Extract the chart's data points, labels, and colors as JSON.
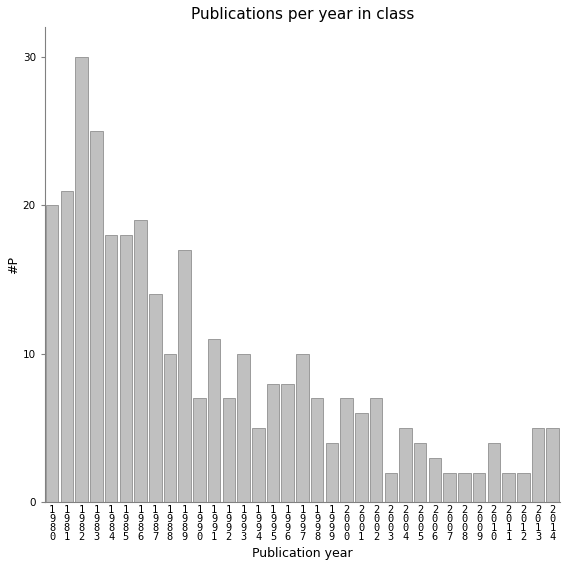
{
  "title": "Publications per year in class",
  "xlabel": "Publication year",
  "ylabel": "#P",
  "categories": [
    "1980",
    "1981",
    "1982",
    "1983",
    "1984",
    "1985",
    "1986",
    "1987",
    "1988",
    "1989",
    "1990",
    "1991",
    "1992",
    "1993",
    "1994",
    "1995",
    "1996",
    "1997",
    "1998",
    "1999",
    "2000",
    "2001",
    "2002",
    "2003",
    "2004",
    "2005",
    "2006",
    "2007",
    "2008",
    "2009",
    "2010",
    "2011",
    "2012",
    "2013",
    "2014"
  ],
  "values": [
    20,
    21,
    30,
    25,
    18,
    18,
    19,
    14,
    10,
    17,
    7,
    11,
    7,
    10,
    5,
    8,
    8,
    10,
    7,
    4,
    7,
    6,
    7,
    2,
    5,
    4,
    3,
    2,
    2,
    2,
    4,
    2,
    2,
    5,
    5
  ],
  "bar_color": "#c0c0c0",
  "bar_edge_color": "#808080",
  "ylim": [
    0,
    32
  ],
  "yticks": [
    0,
    10,
    20,
    30
  ],
  "background_color": "#ffffff",
  "title_fontsize": 11,
  "label_fontsize": 9,
  "tick_fontsize": 7.5
}
